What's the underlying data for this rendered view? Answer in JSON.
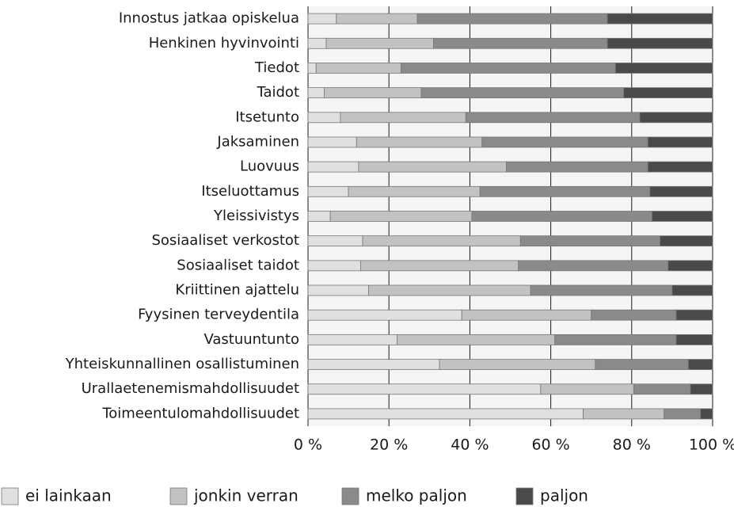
{
  "chart_data": {
    "type": "stacked-barh",
    "categories": [
      "Innostus jatkaa opiskelua",
      "Henkinen hyvinvointi",
      "Tiedot",
      "Taidot",
      "Itsetunto",
      "Jaksaminen",
      "Luovuus",
      "Itseluottamus",
      "Yleissivistys",
      "Sosiaaliset verkostot",
      "Sosiaaliset taidot",
      "Kriittinen ajattelu",
      "Fyysinen terveydentila",
      "Vastuuntunto",
      "Yhteiskunnallinen osallistuminen",
      "Urallaetenemismahdollisuudet",
      "Toimeentulomahdollisuudet"
    ],
    "series": [
      {
        "name": "ei lainkaan",
        "color": "#e0e0e0",
        "values": [
          7,
          4.5,
          2,
          4,
          8,
          12,
          12.5,
          10,
          5.5,
          13.5,
          13,
          15,
          38,
          22,
          32.5,
          57.5,
          68
        ]
      },
      {
        "name": "jonkin verran",
        "color": "#c2c2c2",
        "values": [
          20,
          26.5,
          21,
          24,
          31,
          31,
          36.5,
          32.5,
          35,
          39,
          39,
          40,
          32,
          39,
          38.5,
          23,
          20
        ]
      },
      {
        "name": "melko paljon",
        "color": "#8a8a8a",
        "values": [
          47,
          43,
          53,
          50,
          43,
          41,
          35,
          42,
          44.5,
          34.5,
          37,
          35,
          21,
          30,
          23,
          14,
          9
        ]
      },
      {
        "name": "paljon",
        "color": "#4a4a4a",
        "values": [
          26,
          26,
          24,
          22,
          18,
          16,
          16,
          15.5,
          15,
          13,
          11,
          10,
          9,
          9,
          6,
          5.5,
          3
        ]
      }
    ],
    "xlim": [
      0,
      100
    ],
    "xticks": [
      {
        "value": 0,
        "label": "0 %"
      },
      {
        "value": 20,
        "label": "20 %"
      },
      {
        "value": 40,
        "label": "40 %"
      },
      {
        "value": 60,
        "label": "60 %"
      },
      {
        "value": 80,
        "label": "80 %"
      },
      {
        "value": 100,
        "label": "100 %"
      }
    ],
    "grid": true,
    "legend": "bottom"
  }
}
